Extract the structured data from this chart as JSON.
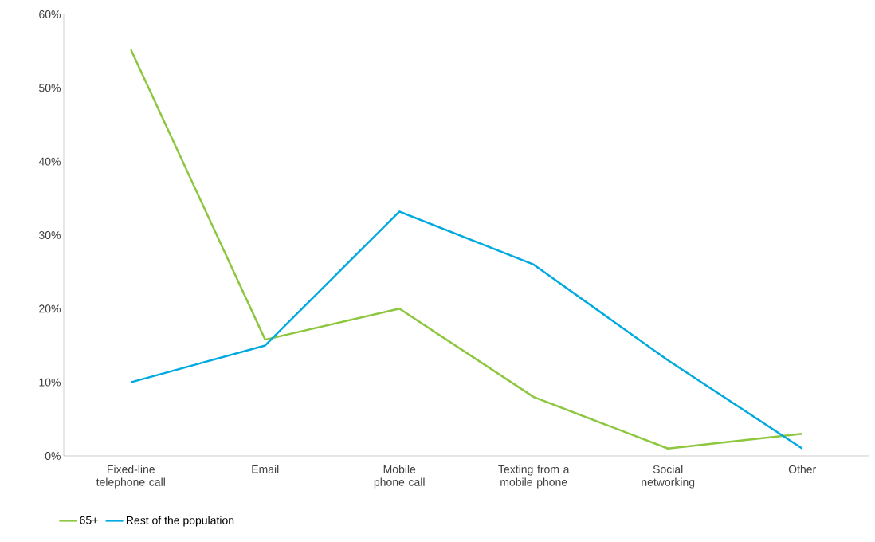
{
  "chart_data": {
    "type": "line",
    "categories": [
      "Fixed-line telephone call",
      "Email",
      "Mobile phone call",
      "Texting from a mobile phone",
      "Social networking",
      "Other"
    ],
    "series": [
      {
        "name": "65+",
        "color": "#8dc63f",
        "values": [
          55.2,
          15.8,
          20,
          8,
          1,
          3
        ]
      },
      {
        "name": "Rest of the population",
        "color": "#00a9e0",
        "values": [
          10,
          15,
          33.2,
          26,
          13,
          1
        ]
      }
    ],
    "ylim": [
      0,
      60
    ],
    "yticks": [
      {
        "value": 0,
        "label": "0%"
      },
      {
        "value": 10,
        "label": "10%"
      },
      {
        "value": 20,
        "label": "20%"
      },
      {
        "value": 30,
        "label": "30%"
      },
      {
        "value": 40,
        "label": "40%"
      },
      {
        "value": 50,
        "label": "50%"
      },
      {
        "value": 60,
        "label": "60%"
      }
    ],
    "grid": false,
    "legend": "bottom left",
    "marker": "none",
    "line_style": "solid"
  }
}
